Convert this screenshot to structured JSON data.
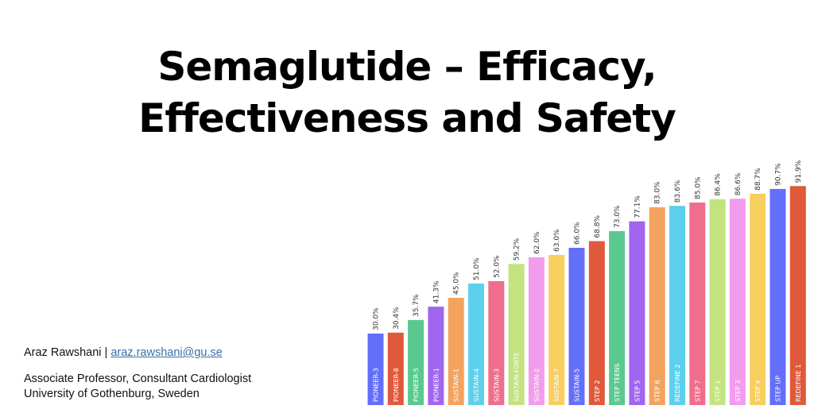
{
  "slide": {
    "title_line1": "Semaglutide – Efficacy,",
    "title_line2": "Effectiveness and Safety",
    "author_name": "Araz Rawshani",
    "author_separator": " | ",
    "author_email": "araz.rawshani@gu.se",
    "role": "Associate Professor, Consultant Cardiologist",
    "affiliation": "University of Gothenburg, Sweden"
  },
  "chart_data": {
    "type": "bar",
    "categories": [
      "PIONEER-3",
      "PIONEER-8",
      "PIONEER-5",
      "PIONEER-1",
      "SUSTAIN-1",
      "SUSTAIN-4",
      "SUSTAIN-3",
      "SUSTAIN-FORTE",
      "SUSTAIN-2",
      "SUSTAIN-7",
      "SUSTAIN-5",
      "STEP 2",
      "STEP TEENS",
      "STEP 5",
      "STEP 6",
      "REDEFINE 2",
      "STEP 7",
      "STEP 1",
      "STEP 3",
      "STEP 4",
      "STEP UP",
      "REDEFINE 1"
    ],
    "values": [
      30.0,
      30.4,
      35.7,
      41.3,
      45.0,
      51.0,
      52.0,
      59.2,
      62.0,
      63.0,
      66.0,
      68.8,
      73.0,
      77.1,
      83.0,
      83.6,
      85.0,
      86.4,
      86.6,
      88.7,
      90.7,
      91.9
    ],
    "data_labels": [
      "30.0%",
      "30.4%",
      "35.7%",
      "41.3%",
      "45.0%",
      "51.0%",
      "52.0%",
      "59.2%",
      "62.0%",
      "63.0%",
      "66.0%",
      "68.8%",
      "73.0%",
      "77.1%",
      "83.0%",
      "83.6%",
      "85.0%",
      "86.4%",
      "86.6%",
      "88.7%",
      "90.7%",
      "91.9%"
    ],
    "colors": [
      "#636efa",
      "#e0593a",
      "#5ac98f",
      "#a066f0",
      "#f4a35e",
      "#5cd0ec",
      "#ef6e8c",
      "#c2e380",
      "#f39ced",
      "#f8ce5e",
      "#636efa",
      "#e0593a",
      "#5ac98f",
      "#a066f0",
      "#f4a35e",
      "#5cd0ec",
      "#ef6e8c",
      "#c2e380",
      "#f39ced",
      "#f8ce5e",
      "#636efa",
      "#e0593a"
    ],
    "title": "",
    "xlabel": "",
    "ylabel": "",
    "grid": false,
    "legend": "none"
  }
}
